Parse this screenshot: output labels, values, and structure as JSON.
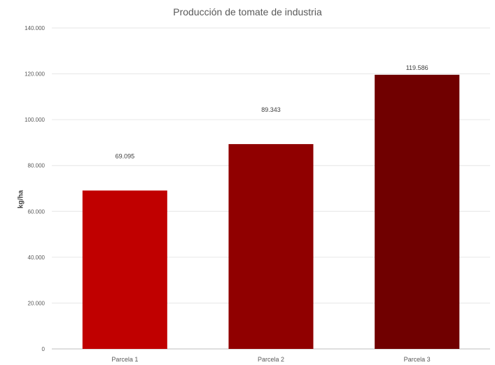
{
  "chart_data": {
    "type": "bar",
    "title": "Producción de tomate de industria",
    "xlabel": "",
    "ylabel": "kg/ha",
    "categories": [
      "Parcela 1",
      "Parcela 2",
      "Parcela 3"
    ],
    "values": [
      69095,
      89343,
      119586
    ],
    "value_labels": [
      "69.095",
      "89.343",
      "119.586"
    ],
    "bar_colors": [
      "#c00000",
      "#900000",
      "#700000"
    ],
    "ylim": [
      0,
      140000
    ],
    "yticks": [
      0,
      20000,
      40000,
      60000,
      80000,
      100000,
      120000,
      140000
    ],
    "ytick_labels": [
      "0",
      "20.000",
      "40.000",
      "60.000",
      "80.000",
      "100.000",
      "120.000",
      "140.000"
    ],
    "grid": true,
    "gridline_color": "#e6e6e6"
  }
}
